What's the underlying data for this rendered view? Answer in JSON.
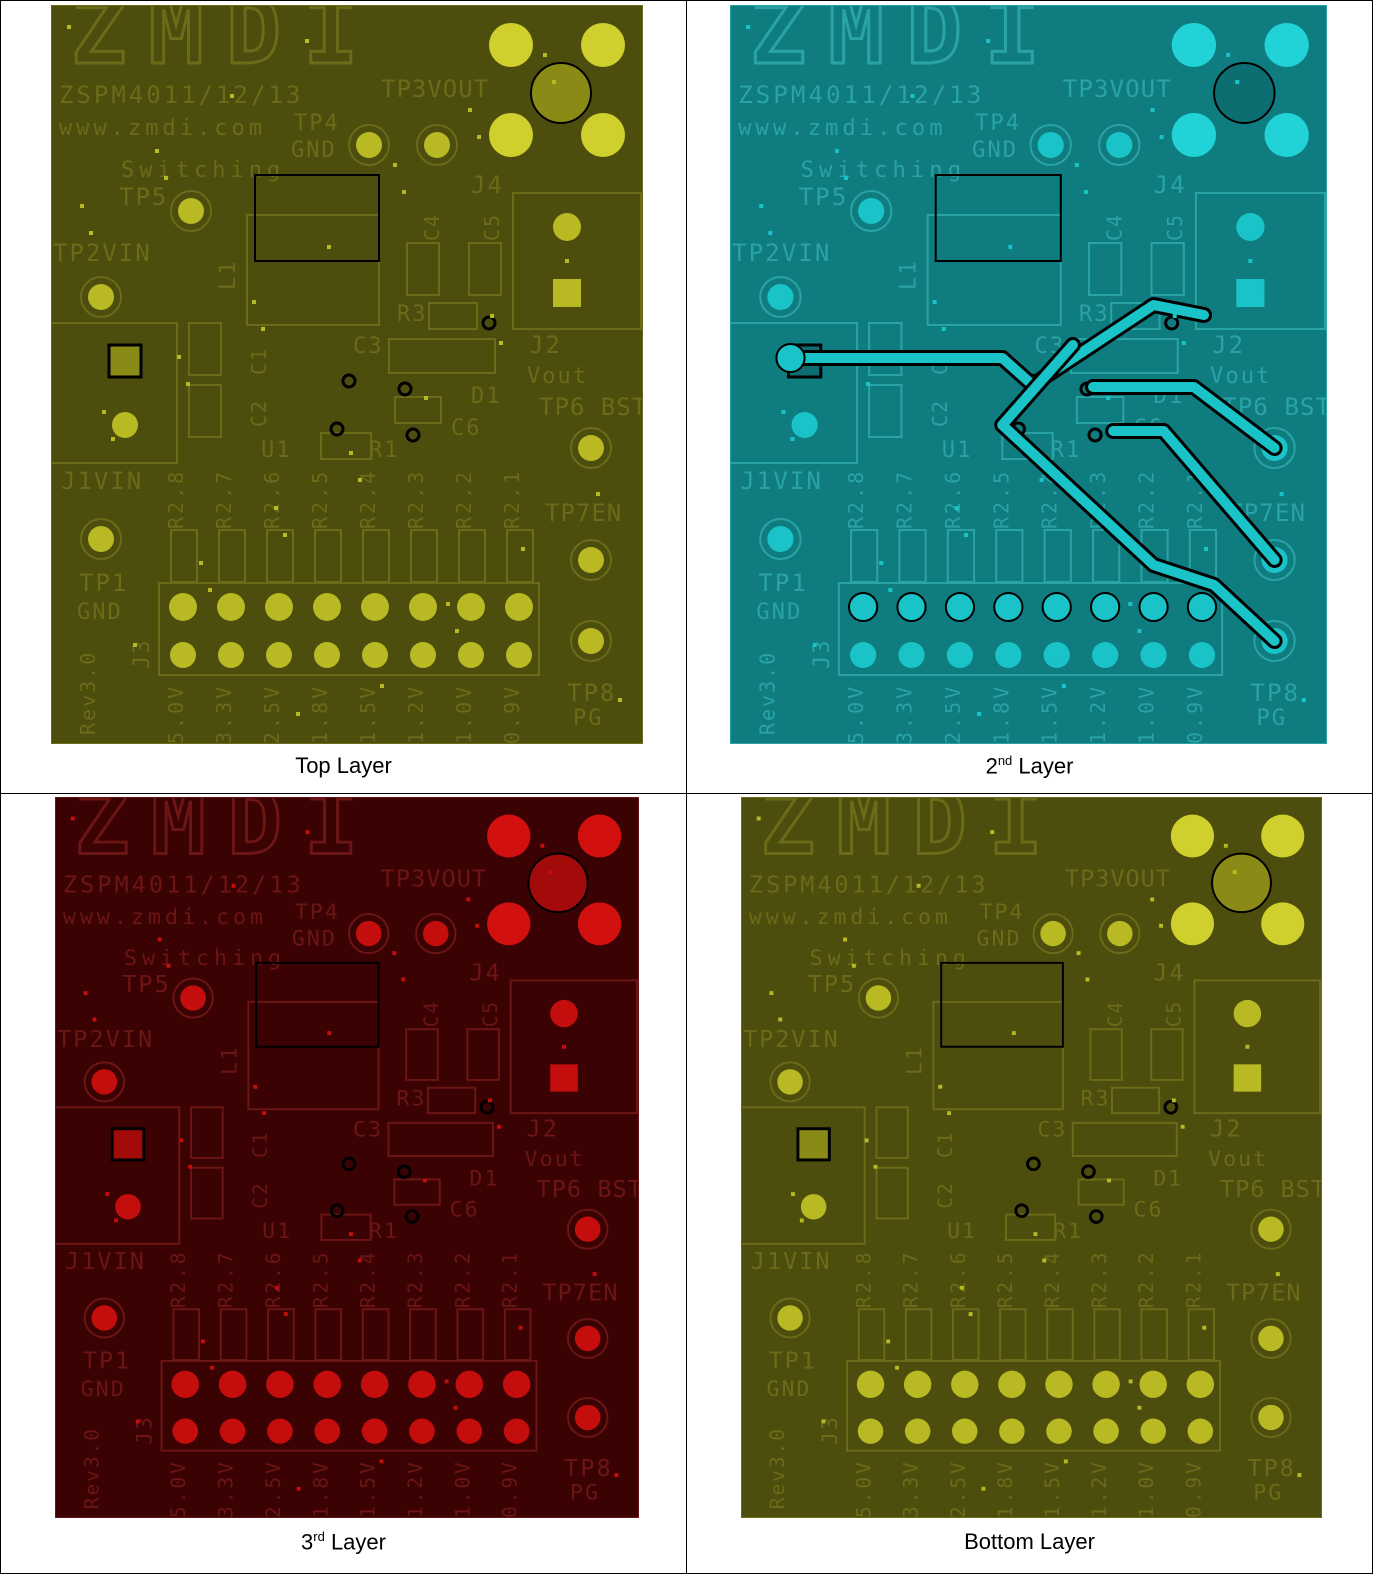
{
  "panels": [
    {
      "caption_base": "Top Layer",
      "caption_sup": "",
      "caption_after": "",
      "theme": {
        "bg": "#4d4d0e",
        "fg": "#6b6b1a",
        "pad": "#b9b923",
        "pad_dark": "#8a8a16",
        "bright": "#cfcf2e"
      }
    },
    {
      "caption_base": "2",
      "caption_sup": "nd",
      "caption_after": " Layer",
      "theme": {
        "bg": "#0f7d80",
        "fg": "#2aa3a6",
        "pad": "#19c3c7",
        "pad_dark": "#0d6e71",
        "bright": "#21d2d6"
      }
    },
    {
      "caption_base": "3",
      "caption_sup": "rd",
      "caption_after": " Layer",
      "theme": {
        "bg": "#3a0202",
        "fg": "#6b1515",
        "pad": "#c40d0d",
        "pad_dark": "#a30a0a",
        "bright": "#d21010"
      }
    },
    {
      "caption_base": "Bottom Layer",
      "caption_sup": "",
      "caption_after": "",
      "theme": {
        "bg": "#4d4d0e",
        "fg": "#6b6b1a",
        "pad": "#b9b923",
        "pad_dark": "#8a8a16",
        "bright": "#cfcf2e"
      }
    }
  ],
  "silk": {
    "logo": "ZMDI",
    "part": "ZSPM4011/12/13",
    "url": "www.zmdi.com",
    "switching": "Switching",
    "tp1": "TP1",
    "gnd": "GND",
    "tp2": "TP2VIN",
    "tp3": "TP3VOUT",
    "tp4": "TP4",
    "tp5": "TP5",
    "tp6": "TP6 BST",
    "tp7": "TP7EN",
    "tp8": "TP8",
    "pg": "PG",
    "j1": "J1VIN",
    "j2": "J2",
    "vout": "Vout",
    "j3": "J3",
    "j4": "J4",
    "l1": "L1",
    "u1": "U1",
    "c1": "C1",
    "c2": "C2",
    "c3": "C3",
    "c4": "C4",
    "c5": "C5",
    "c6": "C6",
    "r1": "R1",
    "r3": "R3",
    "d1": "D1",
    "rev": "Rev3.0",
    "r2_labels": [
      "R2.8",
      "R2.7",
      "R2.6",
      "R2.5",
      "R2.4",
      "R2.3",
      "R2.2",
      "R2.1"
    ],
    "volt_labels": [
      "5.0V",
      "3.3V",
      "2.5V",
      "1.8V",
      "1.5V",
      "1.2V",
      "1.0V",
      "0.9V"
    ]
  }
}
